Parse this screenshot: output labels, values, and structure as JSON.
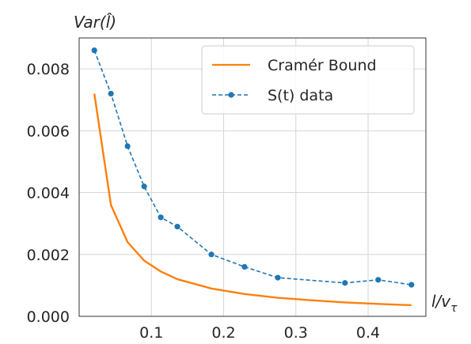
{
  "chart_data": {
    "type": "line",
    "xlabel_main": "l/v",
    "xlabel_sub": "τ",
    "ylabel": "Var(l̂)",
    "xlim": [
      0.0,
      0.48
    ],
    "ylim": [
      0.0,
      0.009
    ],
    "xticks": [
      0.1,
      0.2,
      0.3,
      0.4
    ],
    "xtick_labels": [
      "0.1",
      "0.2",
      "0.3",
      "0.4"
    ],
    "yticks": [
      0.0,
      0.002,
      0.004,
      0.006,
      0.008
    ],
    "ytick_labels": [
      "0.000",
      "0.002",
      "0.004",
      "0.006",
      "0.008"
    ],
    "grid": true,
    "legend_position": "top-right",
    "series": [
      {
        "name": "Cramér Bound",
        "color": "#ff7f0e",
        "style": "solid",
        "x": [
          0.021,
          0.044,
          0.067,
          0.09,
          0.113,
          0.136,
          0.183,
          0.229,
          0.275,
          0.321,
          0.368,
          0.414,
          0.46
        ],
        "y": [
          0.0072,
          0.0036,
          0.0024,
          0.0018,
          0.00145,
          0.0012,
          0.0009,
          0.00072,
          0.0006,
          0.00052,
          0.00045,
          0.0004,
          0.00036
        ]
      },
      {
        "name": "S(t) data",
        "color": "#1f77b4",
        "style": "dashed-markers",
        "x": [
          0.021,
          0.044,
          0.067,
          0.09,
          0.113,
          0.136,
          0.183,
          0.229,
          0.275,
          0.368,
          0.414,
          0.46
        ],
        "y": [
          0.0086,
          0.0072,
          0.0055,
          0.0042,
          0.0032,
          0.0029,
          0.002,
          0.0016,
          0.00125,
          0.00108,
          0.00118,
          0.00102
        ]
      }
    ]
  }
}
